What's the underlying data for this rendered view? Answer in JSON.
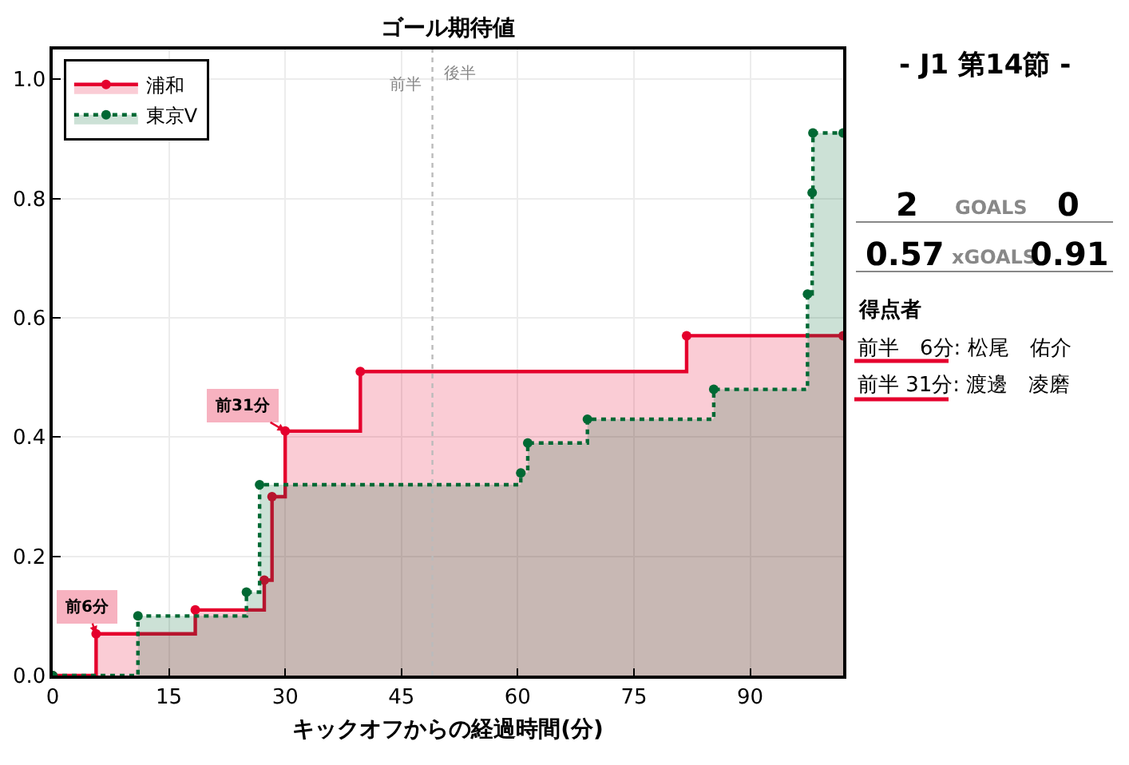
{
  "chart_data": [
    {
      "type": "step",
      "title": "ゴール期待値",
      "xlabel": "キックオフからの経過時間(分)",
      "series": [
        {
          "name": "浦和",
          "color": "#e5002d",
          "line_style": "solid",
          "x": [
            0,
            5.6,
            18.4,
            27.3,
            28.3,
            30.0,
            39.7,
            81.8,
            102
          ],
          "values": [
            0,
            0.07,
            0.11,
            0.16,
            0.3,
            0.41,
            0.51,
            0.57,
            0.57
          ]
        },
        {
          "name": "東京V",
          "color": "#006934",
          "line_style": "dotted",
          "x": [
            0,
            11.0,
            25.0,
            26.7,
            60.4,
            61.3,
            69.0,
            85.3,
            97.4,
            98.0,
            98.1,
            102
          ],
          "values": [
            0,
            0.1,
            0.14,
            0.32,
            0.34,
            0.39,
            0.43,
            0.48,
            0.64,
            0.81,
            0.91,
            0.91
          ]
        }
      ],
      "marker": "circle",
      "xlim": [
        0,
        102
      ],
      "xticks": [
        0,
        15,
        30,
        45,
        60,
        75,
        90
      ],
      "ylim": [
        0,
        1.05
      ],
      "yticks": [
        {
          "value": 0,
          "label": "0.0"
        },
        0.2,
        0.4,
        0.6,
        0.8,
        {
          "value": 1,
          "label": "1.0"
        }
      ],
      "grid": true,
      "legend": "top left",
      "ref_lines": [
        {
          "axis": "x",
          "value": 49,
          "label": "前半",
          "color": "#bbbbbb",
          "line_style": "dotted"
        }
      ],
      "annotations": [
        {
          "text": "後半",
          "x": 49,
          "y": 1.01
        },
        {
          "text": "前6分",
          "x": 5.6,
          "y": 0.07
        },
        {
          "text": "前31分",
          "x": 30.0,
          "y": 0.41
        }
      ]
    },
    {
      "type": "other",
      "title": "- J1 第14節 -",
      "annotations": [
        "2",
        "GOALS",
        "0",
        "0.57",
        "xGOALS",
        "0.91",
        "得点者",
        "前半　6分: 松尾　佑介",
        "前半 31分: 渡邊　凌磨"
      ]
    }
  ]
}
